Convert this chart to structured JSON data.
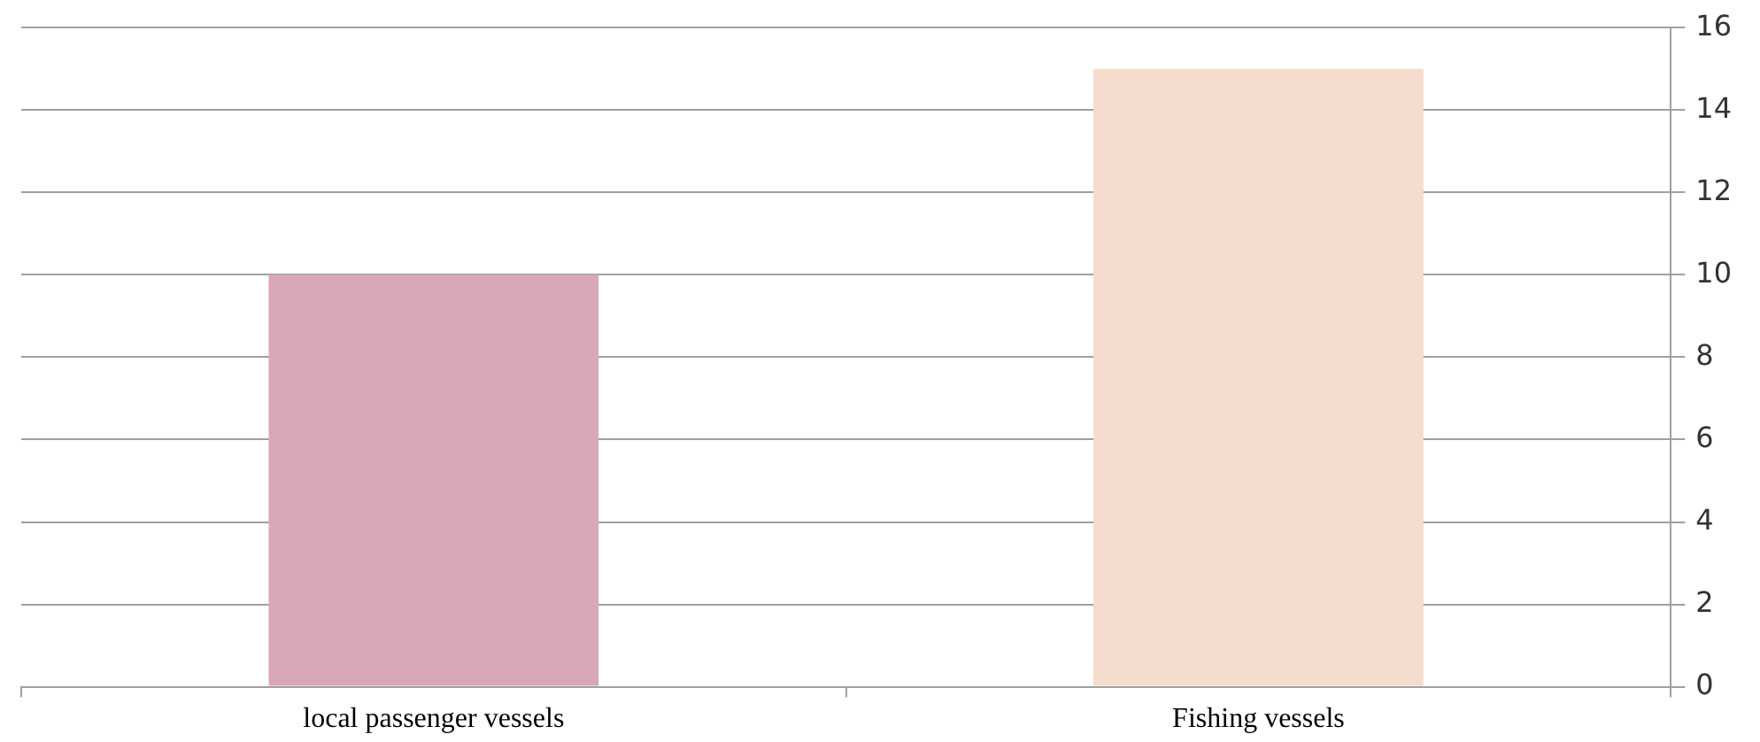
{
  "chart_data": {
    "type": "bar",
    "categories": [
      "local passenger vessels",
      "Fishing vessels"
    ],
    "values": [
      10,
      15
    ],
    "colors": [
      "#d8a8b8",
      "#f5dccc"
    ],
    "ylim": [
      0,
      16
    ],
    "yticks": [
      0,
      2,
      4,
      6,
      8,
      10,
      12,
      14,
      16
    ],
    "grid": "y",
    "legend": false
  }
}
